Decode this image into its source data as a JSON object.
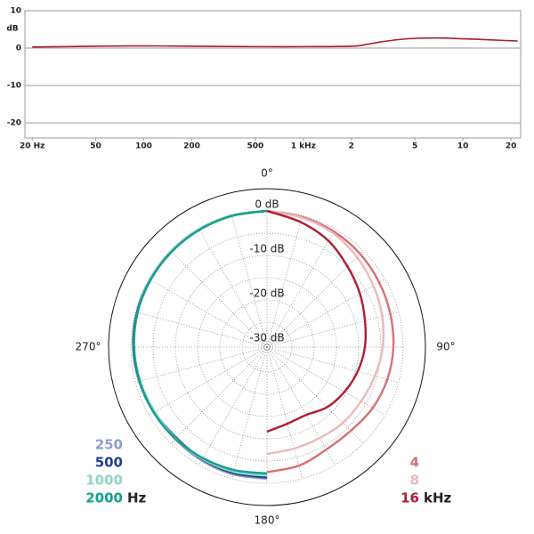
{
  "chart_data": [
    {
      "type": "line",
      "y_axis_label": "dB",
      "xlog": true,
      "xlim": [
        18,
        23000
      ],
      "ylim": [
        -24,
        10
      ],
      "grid": true,
      "xticks": [
        {
          "value": 20,
          "label": "20 Hz"
        },
        50,
        100,
        200,
        500,
        {
          "value": 1000,
          "label": "1 kHz"
        },
        {
          "value": 2000,
          "label": "2"
        },
        {
          "value": 5000,
          "label": "5"
        },
        {
          "value": 10000,
          "label": "10"
        },
        {
          "value": 20000,
          "label": "20"
        }
      ],
      "yticks": [
        10,
        0,
        -10,
        -20
      ],
      "series": [
        {
          "color": "#b01c32",
          "x": [
            20,
            50,
            100,
            200,
            500,
            1000,
            2000,
            2500,
            3000,
            4000,
            5000,
            7000,
            10000,
            15000,
            22000
          ],
          "values": [
            0.3,
            0.5,
            0.6,
            0.5,
            0.4,
            0.4,
            0.5,
            1.0,
            1.6,
            2.3,
            2.6,
            2.7,
            2.5,
            2.2,
            1.9
          ]
        }
      ]
    },
    {
      "type": "polar",
      "rlim": [
        -30.6,
        5
      ],
      "rticks": [
        {
          "value": 0,
          "label": "0 dB"
        },
        {
          "value": -10,
          "label": "-10 dB"
        },
        {
          "value": -20,
          "label": "-20 dB"
        },
        {
          "value": -30,
          "label": "-30 dB"
        }
      ],
      "rminor": [
        -25,
        -15,
        -5
      ],
      "thetaticks": [
        {
          "value": 0,
          "label": "0°"
        },
        {
          "value": 90,
          "label": "90°"
        },
        {
          "value": 180,
          "label": "180°"
        },
        {
          "value": 270,
          "label": "270°"
        }
      ],
      "thetagrid": [
        0,
        15,
        30,
        45,
        60,
        75,
        90,
        105,
        120,
        135,
        150,
        165,
        180,
        195,
        210,
        225,
        240,
        255,
        270,
        285,
        300,
        315,
        330,
        345
      ],
      "legend_left_unit": "Hz",
      "legend_right_unit": "kHz",
      "series": [
        {
          "name": "250",
          "color": "#8a9ec8",
          "side": "left",
          "theta": [
            180,
            195,
            210,
            225,
            240,
            255,
            270,
            285,
            300,
            315,
            330,
            345,
            360
          ],
          "values": [
            -1.0,
            -1.0,
            -1.2,
            -1.4,
            -1.2,
            -0.8,
            -0.5,
            -0.3,
            -0.2,
            -0.1,
            0,
            0,
            0
          ]
        },
        {
          "name": "500",
          "color": "#1f3f8f",
          "side": "left",
          "theta": [
            180,
            195,
            210,
            225,
            240,
            255,
            270,
            285,
            300,
            315,
            330,
            345,
            360
          ],
          "values": [
            -1.3,
            -1.3,
            -1.5,
            -1.8,
            -1.4,
            -1.0,
            -0.6,
            -0.4,
            -0.3,
            -0.2,
            -0.1,
            0,
            0
          ]
        },
        {
          "name": "1000",
          "color": "#8fd4c2",
          "side": "left",
          "theta": [
            180,
            195,
            210,
            225,
            240,
            255,
            270,
            285,
            300,
            315,
            330,
            345,
            360
          ],
          "values": [
            -1.7,
            -1.6,
            -1.6,
            -1.6,
            -1.5,
            -1.1,
            -0.8,
            -0.5,
            -0.3,
            -0.2,
            -0.1,
            0,
            0
          ]
        },
        {
          "name": "2000",
          "color": "#10a08a",
          "side": "left",
          "theta": [
            180,
            195,
            210,
            225,
            240,
            255,
            270,
            285,
            300,
            315,
            330,
            345,
            360
          ],
          "values": [
            -2.2,
            -2.0,
            -1.8,
            -1.5,
            -1.2,
            -1.0,
            -0.7,
            -0.5,
            -0.4,
            -0.3,
            -0.2,
            -0.1,
            0
          ]
        },
        {
          "name": "4",
          "color": "#d97070",
          "side": "right",
          "theta": [
            0,
            15,
            30,
            45,
            60,
            75,
            90,
            105,
            120,
            135,
            150,
            165,
            180
          ],
          "values": [
            0,
            -0.3,
            -0.6,
            -1.0,
            -1.5,
            -1.9,
            -2.2,
            -2.6,
            -3.2,
            -4.0,
            -4.0,
            -3.0,
            -2.5
          ]
        },
        {
          "name": "8",
          "color": "#ecb8b8",
          "side": "right",
          "theta": [
            0,
            15,
            30,
            45,
            60,
            75,
            90,
            105,
            120,
            135,
            150,
            165,
            180
          ],
          "values": [
            0,
            -0.5,
            -1.0,
            -2.0,
            -3.0,
            -3.8,
            -4.6,
            -5.5,
            -6.2,
            -6.5,
            -7.0,
            -7.0,
            -6.6
          ]
        },
        {
          "name": "16",
          "color": "#b01c32",
          "side": "right",
          "theta": [
            0,
            15,
            30,
            45,
            60,
            75,
            90,
            105,
            120,
            135,
            150,
            165,
            180
          ],
          "values": [
            0,
            -1.5,
            -3.0,
            -5.0,
            -6.5,
            -7.8,
            -8.6,
            -9.5,
            -10.5,
            -11.5,
            -13.0,
            -12.8,
            -11.6
          ]
        }
      ]
    }
  ]
}
